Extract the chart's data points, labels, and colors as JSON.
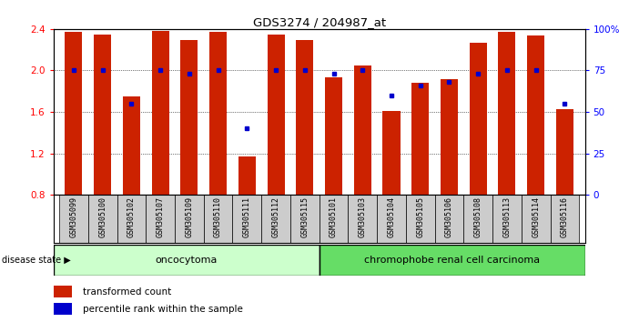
{
  "title": "GDS3274 / 204987_at",
  "samples": [
    "GSM305099",
    "GSM305100",
    "GSM305102",
    "GSM305107",
    "GSM305109",
    "GSM305110",
    "GSM305111",
    "GSM305112",
    "GSM305115",
    "GSM305101",
    "GSM305103",
    "GSM305104",
    "GSM305105",
    "GSM305106",
    "GSM305108",
    "GSM305113",
    "GSM305114",
    "GSM305116"
  ],
  "transformed_count": [
    2.37,
    2.35,
    1.75,
    2.38,
    2.29,
    2.37,
    1.17,
    2.35,
    2.29,
    1.93,
    2.05,
    1.61,
    1.88,
    1.92,
    2.27,
    2.37,
    2.34,
    1.63
  ],
  "percentile_rank": [
    75,
    75,
    55,
    75,
    73,
    75,
    40,
    75,
    75,
    73,
    75,
    60,
    66,
    68,
    73,
    75,
    75,
    55
  ],
  "bar_color": "#cc2200",
  "dot_color": "#0000cc",
  "ylim_left": [
    0.8,
    2.4
  ],
  "ylim_right": [
    0,
    100
  ],
  "yticks_left": [
    0.8,
    1.2,
    1.6,
    2.0,
    2.4
  ],
  "yticks_right": [
    0,
    25,
    50,
    75,
    100
  ],
  "ytick_labels_right": [
    "0",
    "25",
    "50",
    "75",
    "100%"
  ],
  "group1_label": "oncocytoma",
  "group2_label": "chromophobe renal cell carcinoma",
  "group1_count": 9,
  "group2_count": 9,
  "disease_state_label": "disease state",
  "legend_red": "transformed count",
  "legend_blue": "percentile rank within the sample",
  "group1_color": "#ccffcc",
  "group2_color": "#66dd66",
  "xlabels_bg_color": "#cccccc",
  "bar_width": 0.6
}
